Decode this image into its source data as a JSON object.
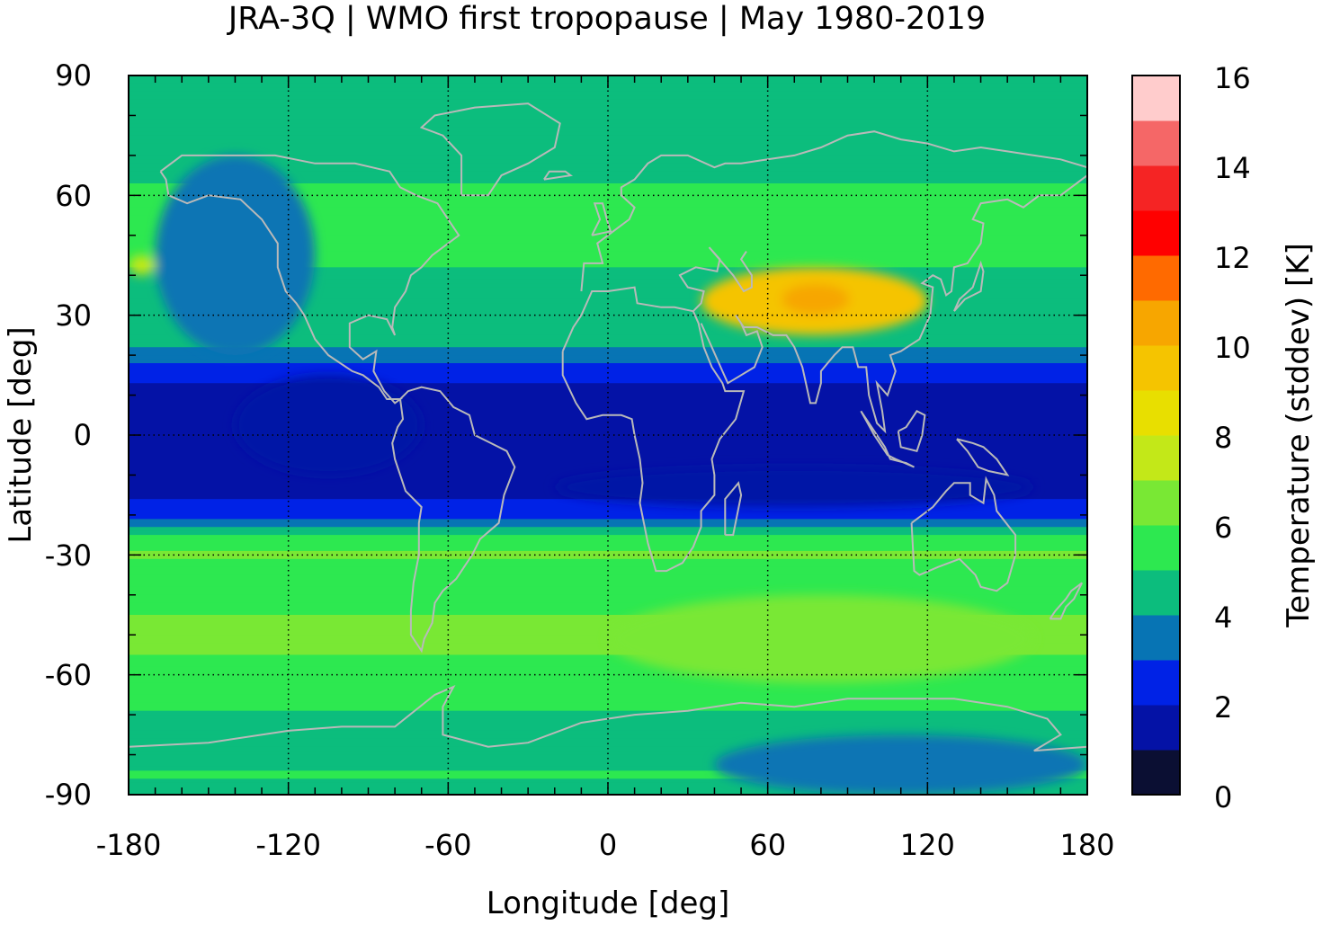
{
  "title": "JRA-3Q | WMO first tropopause | May 1980-2019",
  "xlabel": "Longitude [deg]",
  "ylabel": "Latitude [deg]",
  "colorbar_label": "Temperature (stddev) [K]",
  "x_ticks": [
    "-180",
    "-120",
    "-60",
    "0",
    "60",
    "120",
    "180"
  ],
  "y_ticks": [
    "90",
    "60",
    "30",
    "0",
    "-30",
    "-60",
    "-90"
  ],
  "cb_ticks": [
    "16",
    "14",
    "12",
    "10",
    "8",
    "6",
    "4",
    "2",
    "0"
  ],
  "palette": [
    "#0b0f33",
    "#0412a6",
    "#0022e6",
    "#0774b4",
    "#0cbd7d",
    "#2de850",
    "#79e834",
    "#c3e818",
    "#e8df00",
    "#f5c400",
    "#f7a600",
    "#ff6a00",
    "#ff0000",
    "#f52424",
    "#f56767",
    "#ffcccc"
  ],
  "coastline_color": "#b9b9b9",
  "chart_data": {
    "type": "heatmap",
    "title": "JRA-3Q | WMO first tropopause | May 1980-2019",
    "xlabel": "Longitude [deg]",
    "ylabel": "Latitude [deg]",
    "xlim": [
      -180,
      180
    ],
    "ylim": [
      -90,
      90
    ],
    "x_ticks": [
      -180,
      -120,
      -60,
      0,
      60,
      120,
      180
    ],
    "y_ticks": [
      -90,
      -60,
      -30,
      0,
      30,
      60,
      90
    ],
    "grid": true,
    "colorbar": {
      "label": "Temperature (stddev) [K]",
      "range": [
        0,
        16
      ],
      "step": 1,
      "ticks": [
        0,
        2,
        4,
        6,
        8,
        10,
        12,
        14,
        16
      ]
    },
    "zonal_profile": {
      "latitude": [
        -90,
        -85,
        -80,
        -75,
        -70,
        -65,
        -60,
        -55,
        -50,
        -45,
        -40,
        -35,
        -30,
        -25,
        -20,
        -15,
        -10,
        -5,
        0,
        5,
        10,
        15,
        20,
        25,
        30,
        35,
        40,
        45,
        50,
        55,
        60,
        65,
        70,
        75,
        80,
        85,
        90
      ],
      "stddev_K": [
        4.5,
        5.2,
        4.5,
        5.0,
        4.8,
        5.5,
        5.5,
        6.0,
        6.2,
        6.0,
        5.5,
        5.3,
        6.2,
        5.0,
        2.5,
        1.8,
        1.5,
        1.3,
        1.6,
        1.7,
        1.6,
        2.2,
        3.5,
        4.5,
        4.5,
        5.0,
        4.7,
        5.3,
        5.8,
        5.5,
        5.2,
        4.8,
        4.3,
        4.0,
        4.3,
        4.6,
        4.8
      ]
    },
    "features": [
      {
        "lon": [
          35,
          120
        ],
        "lat": [
          25,
          42
        ],
        "stddev_K": 9.0,
        "peak_K": 10.0,
        "peak_location": [
          78,
          34
        ]
      },
      {
        "lon": [
          -170,
          -110
        ],
        "lat": [
          20,
          70
        ],
        "stddev_K": 3.5
      },
      {
        "lon": [
          -140,
          -70
        ],
        "lat": [
          -10,
          15
        ],
        "stddev_K": 1.0
      },
      {
        "lon": [
          -20,
          160
        ],
        "lat": [
          -18,
          -8
        ],
        "stddev_K": 1.0
      },
      {
        "lon": [
          0,
          160
        ],
        "lat": [
          -62,
          -40
        ],
        "stddev_K": 6.5
      },
      {
        "lon": [
          40,
          180
        ],
        "lat": [
          -90,
          -75
        ],
        "stddev_K": 3.5
      },
      {
        "lon": [
          -180,
          -170
        ],
        "lat": [
          40,
          45
        ],
        "stddev_K": 7.0
      }
    ]
  }
}
